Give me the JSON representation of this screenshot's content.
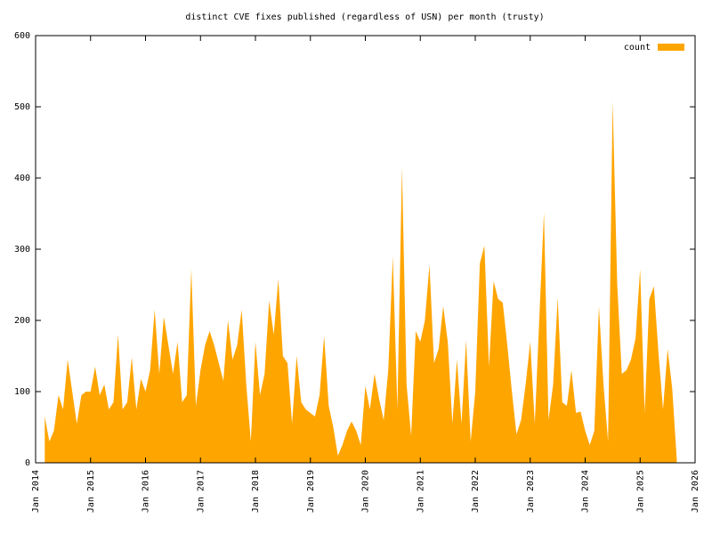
{
  "chart_data": {
    "type": "area",
    "title": "distinct CVE fixes published (regardless of USN) per month (trusty)",
    "x": [
      "2014-03",
      "2014-04",
      "2014-05",
      "2014-06",
      "2014-07",
      "2014-08",
      "2014-09",
      "2014-10",
      "2014-11",
      "2014-12",
      "2015-01",
      "2015-02",
      "2015-03",
      "2015-04",
      "2015-05",
      "2015-06",
      "2015-07",
      "2015-08",
      "2015-09",
      "2015-10",
      "2015-11",
      "2015-12",
      "2016-01",
      "2016-02",
      "2016-03",
      "2016-04",
      "2016-05",
      "2016-06",
      "2016-07",
      "2016-08",
      "2016-09",
      "2016-10",
      "2016-11",
      "2016-12",
      "2017-01",
      "2017-02",
      "2017-03",
      "2017-04",
      "2017-05",
      "2017-06",
      "2017-07",
      "2017-08",
      "2017-09",
      "2017-10",
      "2017-11",
      "2017-12",
      "2018-01",
      "2018-02",
      "2018-03",
      "2018-04",
      "2018-05",
      "2018-06",
      "2018-07",
      "2018-08",
      "2018-09",
      "2018-10",
      "2018-11",
      "2018-12",
      "2019-01",
      "2019-02",
      "2019-03",
      "2019-04",
      "2019-05",
      "2019-06",
      "2019-07",
      "2019-08",
      "2019-09",
      "2019-10",
      "2019-11",
      "2019-12",
      "2020-01",
      "2020-02",
      "2020-03",
      "2020-04",
      "2020-05",
      "2020-06",
      "2020-07",
      "2020-08",
      "2020-09",
      "2020-10",
      "2020-11",
      "2020-12",
      "2021-01",
      "2021-02",
      "2021-03",
      "2021-04",
      "2021-05",
      "2021-06",
      "2021-07",
      "2021-08",
      "2021-09",
      "2021-10",
      "2021-11",
      "2021-12",
      "2022-01",
      "2022-02",
      "2022-03",
      "2022-04",
      "2022-05",
      "2022-06",
      "2022-07",
      "2022-08",
      "2022-09",
      "2022-10",
      "2022-11",
      "2022-12",
      "2023-01",
      "2023-02",
      "2023-03",
      "2023-04",
      "2023-05",
      "2023-06",
      "2023-07",
      "2023-08",
      "2023-09",
      "2023-10",
      "2023-11",
      "2023-12",
      "2024-01",
      "2024-02",
      "2024-03",
      "2024-04",
      "2024-05",
      "2024-06",
      "2024-07",
      "2024-08",
      "2024-09",
      "2024-10",
      "2024-11",
      "2024-12",
      "2025-01",
      "2025-02",
      "2025-03",
      "2025-04",
      "2025-05",
      "2025-06",
      "2025-07",
      "2025-08",
      "2025-09"
    ],
    "series": [
      {
        "name": "count",
        "color": "#ffa500",
        "values": [
          65,
          30,
          45,
          95,
          75,
          145,
          100,
          55,
          95,
          100,
          100,
          135,
          95,
          110,
          75,
          85,
          180,
          75,
          85,
          148,
          75,
          118,
          100,
          130,
          215,
          125,
          205,
          165,
          125,
          170,
          85,
          95,
          272,
          80,
          130,
          165,
          185,
          165,
          140,
          115,
          200,
          145,
          165,
          215,
          110,
          30,
          170,
          95,
          125,
          228,
          180,
          258,
          150,
          140,
          55,
          150,
          85,
          75,
          70,
          65,
          95,
          178,
          80,
          50,
          10,
          25,
          45,
          58,
          45,
          25,
          108,
          75,
          125,
          90,
          60,
          130,
          290,
          75,
          415,
          110,
          38,
          185,
          170,
          200,
          278,
          140,
          160,
          220,
          170,
          55,
          145,
          55,
          172,
          30,
          100,
          280,
          305,
          135,
          255,
          230,
          225,
          165,
          100,
          40,
          60,
          110,
          170,
          55,
          205,
          352,
          60,
          110,
          232,
          85,
          80,
          130,
          70,
          72,
          45,
          25,
          45,
          220,
          110,
          30,
          508,
          250,
          125,
          130,
          145,
          175,
          272,
          70,
          230,
          248,
          155,
          75,
          160,
          105,
          5
        ]
      }
    ],
    "xlim": [
      "2014-01",
      "2026-01"
    ],
    "xticks": [
      {
        "value": "2014-01",
        "label": "Jan 2014"
      },
      {
        "value": "2015-01",
        "label": "Jan 2015"
      },
      {
        "value": "2016-01",
        "label": "Jan 2016"
      },
      {
        "value": "2017-01",
        "label": "Jan 2017"
      },
      {
        "value": "2018-01",
        "label": "Jan 2018"
      },
      {
        "value": "2019-01",
        "label": "Jan 2019"
      },
      {
        "value": "2020-01",
        "label": "Jan 2020"
      },
      {
        "value": "2021-01",
        "label": "Jan 2021"
      },
      {
        "value": "2022-01",
        "label": "Jan 2022"
      },
      {
        "value": "2023-01",
        "label": "Jan 2023"
      },
      {
        "value": "2024-01",
        "label": "Jan 2024"
      },
      {
        "value": "2025-01",
        "label": "Jan 2025"
      },
      {
        "value": "2026-01",
        "label": "Jan 2026"
      }
    ],
    "ylim": [
      0,
      600
    ],
    "yticks": [
      0,
      100,
      200,
      300,
      400,
      500,
      600
    ],
    "legend": "top right"
  }
}
